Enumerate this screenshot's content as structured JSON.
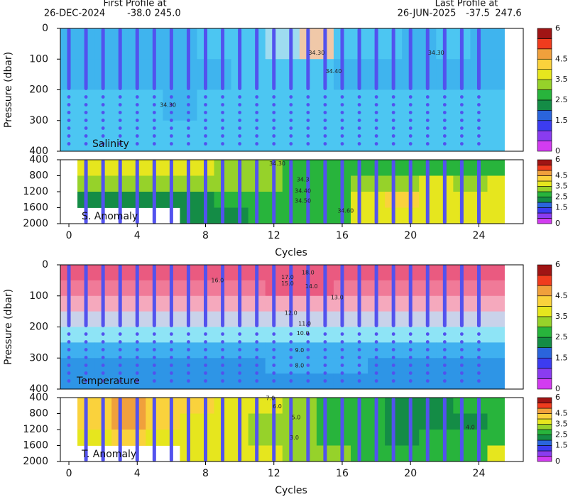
{
  "header": {
    "first": "First Profile at",
    "first_date": "26-DEC-2024",
    "first_lat": "-38.0",
    "first_lon": "245.0",
    "last": "Last Profile at",
    "last_date": "26-JUN-2025",
    "last_lat": "-37.5",
    "last_lon": "247.6"
  },
  "colorbar": {
    "bounds": [
      0,
      0.5,
      1,
      1.5,
      2,
      2.5,
      3,
      3.5,
      4,
      4.5,
      5,
      5.5,
      6
    ],
    "colors": [
      "#d23cf0",
      "#8a3cf0",
      "#3c3cf0",
      "#2a64dc",
      "#148c46",
      "#28b43c",
      "#96d22a",
      "#e6e61e",
      "#fad23c",
      "#f0a03c",
      "#f03c1e",
      "#a01414"
    ],
    "ticks": [
      0,
      1.5,
      2.5,
      3.5,
      4.5,
      6
    ]
  },
  "chart_data": [
    {
      "type": "heatmap",
      "label": "Salinity",
      "ylabel": "Pressure (dbar)",
      "xlim": [
        -0.5,
        26.6
      ],
      "ylim": [
        0,
        400
      ],
      "yticks": [
        0,
        100,
        200,
        300,
        400
      ],
      "col_edges": [
        -0.5,
        1.5,
        3.5,
        5.5,
        7.5,
        9.5,
        11.5,
        13.5,
        15.5,
        17.5,
        19.5,
        21.5,
        23.5,
        25.5
      ],
      "row_edges": [
        0,
        100,
        200,
        300,
        400
      ],
      "values": [
        [
          34.32,
          34.33,
          34.33,
          34.33,
          34.36,
          34.37,
          34.42,
          34.47,
          34.38,
          34.36,
          34.33,
          34.36,
          34.33
        ],
        [
          34.32,
          34.32,
          34.32,
          34.33,
          34.34,
          34.35,
          34.36,
          34.38,
          34.34,
          34.33,
          34.32,
          34.32,
          34.32
        ],
        [
          34.36,
          34.36,
          34.36,
          34.34,
          34.36,
          34.36,
          34.36,
          34.36,
          34.36,
          34.36,
          34.36,
          34.36,
          34.36
        ],
        [
          34.36,
          34.36,
          34.36,
          34.36,
          34.36,
          34.36,
          34.36,
          34.36,
          34.36,
          34.36,
          34.36,
          34.36,
          34.36
        ]
      ],
      "bounds": [
        34.2,
        34.35,
        34.4,
        34.45,
        34.6
      ],
      "colors": [
        "#3fb4ee",
        "#4cc6f2",
        "#9edcf0",
        "#f0c8a8"
      ],
      "profile_cycles": [
        0,
        1,
        2,
        3,
        4,
        5,
        6,
        7,
        8,
        9,
        10,
        11,
        12,
        13,
        14,
        15,
        16,
        17,
        18,
        19,
        20,
        21,
        22,
        23,
        24
      ],
      "contour_labels": [
        {
          "x": 14.5,
          "y": 80,
          "label": "34.30"
        },
        {
          "x": 15.5,
          "y": 140,
          "label": "34.40"
        },
        {
          "x": 21.5,
          "y": 80,
          "label": "34.30"
        },
        {
          "x": 5.8,
          "y": 250,
          "label": "34.30"
        }
      ]
    },
    {
      "type": "heatmap",
      "label": "S. Anomaly",
      "xlabel": "Cycles",
      "xlim": [
        -0.5,
        26.6
      ],
      "xticks": [
        0,
        4,
        8,
        12,
        16,
        20,
        24
      ],
      "ylim": [
        400,
        2000
      ],
      "yticks": [
        400,
        800,
        1200,
        1600,
        2000
      ],
      "col_edges": [
        0.5,
        2.5,
        4.5,
        6.5,
        8.5,
        10.5,
        12.5,
        14.5,
        16.5,
        18.5,
        20.5,
        22.5,
        24.5,
        25.5
      ],
      "row_edges": [
        400,
        800,
        1200,
        1600,
        2000
      ],
      "values": [
        [
          3.8,
          3.8,
          3.8,
          3.6,
          3.3,
          3.2,
          2.8,
          2.8,
          2.6,
          2.8,
          2.6,
          2.6,
          2.6
        ],
        [
          3.0,
          3.2,
          3.2,
          3.0,
          3.0,
          3.2,
          2.8,
          2.8,
          3.2,
          3.4,
          3.6,
          3.4,
          3.6
        ],
        [
          2.4,
          2.4,
          2.4,
          2.4,
          2.6,
          2.8,
          2.6,
          2.8,
          3.6,
          4.2,
          3.8,
          3.6,
          3.6
        ],
        [
          null,
          null,
          null,
          2.4,
          2.4,
          2.6,
          2.6,
          2.8,
          3.6,
          3.8,
          3.6,
          3.6,
          3.6
        ]
      ],
      "bounds": [
        0,
        0.5,
        1,
        1.5,
        2,
        2.5,
        3,
        3.5,
        4,
        4.5,
        5,
        5.5,
        6
      ],
      "colors": [
        "#d23cf0",
        "#8a3cf0",
        "#3c3cf0",
        "#2a64dc",
        "#148c46",
        "#28b43c",
        "#96d22a",
        "#e6e61e",
        "#fad23c",
        "#f0a03c",
        "#f03c1e",
        "#a01414"
      ],
      "profile_cycles": [
        1,
        2,
        3,
        4,
        5,
        6,
        7,
        8,
        9,
        10,
        11,
        12,
        13,
        14,
        15,
        16,
        17,
        18,
        19,
        20,
        21,
        22,
        23,
        24
      ],
      "contour_labels": [
        {
          "x": 12.2,
          "y": 500,
          "label": "34.30"
        },
        {
          "x": 13.7,
          "y": 900,
          "label": "34.3"
        },
        {
          "x": 13.7,
          "y": 1180,
          "label": "34.40"
        },
        {
          "x": 13.7,
          "y": 1430,
          "label": "34.50"
        },
        {
          "x": 16.2,
          "y": 1680,
          "label": "34.60"
        }
      ]
    },
    {
      "type": "heatmap",
      "label": "Temperature",
      "ylabel": "Pressure (dbar)",
      "xlim": [
        -0.5,
        26.6
      ],
      "ylim": [
        0,
        400
      ],
      "yticks": [
        0,
        100,
        200,
        300,
        400
      ],
      "col_edges": [
        -0.5,
        1.5,
        3.5,
        5.5,
        7.5,
        9.5,
        11.5,
        13.5,
        15.5,
        17.5,
        19.5,
        21.5,
        23.5,
        25.5
      ],
      "row_edges": [
        0,
        50,
        100,
        150,
        200,
        250,
        300,
        350,
        400
      ],
      "values": [
        [
          17.2,
          17.4,
          17.4,
          17.3,
          17.4,
          17.6,
          18.2,
          18.3,
          17.6,
          17.4,
          17.2,
          17.2,
          17.2
        ],
        [
          16.4,
          16.6,
          16.6,
          16.4,
          16.5,
          16.6,
          17.0,
          17.2,
          16.8,
          16.6,
          16.4,
          16.4,
          16.4
        ],
        [
          14.5,
          14.8,
          14.8,
          14.6,
          14.6,
          14.8,
          15.2,
          15.5,
          15.0,
          14.8,
          14.6,
          14.8,
          14.6
        ],
        [
          12.6,
          12.8,
          12.8,
          12.6,
          12.6,
          12.8,
          13.0,
          13.2,
          12.8,
          12.6,
          12.4,
          12.6,
          12.4
        ],
        [
          10.6,
          10.8,
          10.8,
          10.6,
          10.8,
          10.8,
          11.0,
          11.0,
          10.8,
          10.6,
          10.4,
          10.6,
          10.4
        ],
        [
          8.8,
          9.0,
          9.0,
          8.8,
          9.0,
          9.0,
          9.2,
          9.4,
          9.2,
          9.0,
          8.8,
          9.0,
          8.8
        ],
        [
          7.6,
          7.6,
          7.6,
          7.8,
          7.8,
          7.8,
          8.0,
          8.2,
          8.0,
          7.8,
          7.6,
          7.8,
          7.6
        ],
        [
          7.2,
          7.2,
          7.2,
          7.2,
          7.2,
          7.2,
          7.4,
          7.4,
          7.2,
          7.2,
          7.2,
          7.2,
          7.2
        ]
      ],
      "bounds": [
        6,
        8,
        10,
        12,
        14,
        16,
        17,
        19
      ],
      "colors": [
        "#2e95e6",
        "#3fb0f0",
        "#8ee4f6",
        "#c9d2ea",
        "#f5a9bd",
        "#f07a98",
        "#ea5a80"
      ],
      "profile_cycles": [
        0,
        1,
        2,
        3,
        4,
        5,
        6,
        7,
        8,
        9,
        10,
        11,
        12,
        13,
        14,
        15,
        16,
        17,
        18,
        19,
        20,
        21,
        22,
        23,
        24
      ],
      "contour_labels": [
        {
          "x": 14,
          "y": 25,
          "label": "18.0"
        },
        {
          "x": 12.8,
          "y": 40,
          "label": "17.0"
        },
        {
          "x": 8.7,
          "y": 50,
          "label": "16.0"
        },
        {
          "x": 12.8,
          "y": 60,
          "label": "15.0"
        },
        {
          "x": 14.2,
          "y": 70,
          "label": "14.0"
        },
        {
          "x": 15.7,
          "y": 105,
          "label": "13.0"
        },
        {
          "x": 13,
          "y": 155,
          "label": "12.0"
        },
        {
          "x": 13.8,
          "y": 190,
          "label": "11.0"
        },
        {
          "x": 13.7,
          "y": 220,
          "label": "10.0"
        },
        {
          "x": 13.5,
          "y": 275,
          "label": "9.0"
        },
        {
          "x": 13.5,
          "y": 325,
          "label": "8.0"
        }
      ]
    },
    {
      "type": "heatmap",
      "label": "T. Anomaly",
      "xlabel": "Cycles",
      "xlim": [
        -0.5,
        26.6
      ],
      "xticks": [
        0,
        4,
        8,
        12,
        16,
        20,
        24
      ],
      "ylim": [
        400,
        2000
      ],
      "yticks": [
        400,
        800,
        1200,
        1600,
        2000
      ],
      "col_edges": [
        0.5,
        2.5,
        4.5,
        6.5,
        8.5,
        10.5,
        12.5,
        14.5,
        16.5,
        18.5,
        20.5,
        22.5,
        24.5,
        25.5
      ],
      "row_edges": [
        400,
        800,
        1200,
        1600,
        2000
      ],
      "values": [
        [
          4.2,
          4.6,
          4.0,
          4.0,
          3.8,
          3.6,
          3.2,
          2.6,
          2.6,
          2.4,
          2.4,
          2.6,
          2.6
        ],
        [
          4.0,
          4.6,
          4.2,
          3.8,
          3.6,
          3.4,
          3.0,
          2.8,
          2.6,
          2.4,
          2.4,
          2.4,
          2.6
        ],
        [
          3.8,
          4.2,
          3.8,
          3.6,
          3.6,
          3.4,
          3.0,
          2.8,
          2.6,
          2.4,
          2.6,
          2.6,
          2.8
        ],
        [
          null,
          null,
          null,
          3.6,
          3.6,
          3.6,
          3.2,
          3.0,
          2.6,
          2.6,
          2.6,
          2.6,
          3.6
        ]
      ],
      "bounds": [
        0,
        0.5,
        1,
        1.5,
        2,
        2.5,
        3,
        3.5,
        4,
        4.5,
        5,
        5.5,
        6
      ],
      "colors": [
        "#d23cf0",
        "#8a3cf0",
        "#3c3cf0",
        "#2a64dc",
        "#148c46",
        "#28b43c",
        "#96d22a",
        "#e6e61e",
        "#fad23c",
        "#f0a03c",
        "#f03c1e",
        "#a01414"
      ],
      "profile_cycles": [
        1,
        2,
        3,
        4,
        5,
        6,
        7,
        8,
        9,
        10,
        11,
        12,
        13,
        14,
        15,
        16,
        17,
        18,
        19,
        20,
        21,
        22,
        23,
        24
      ],
      "contour_labels": [
        {
          "x": 11.8,
          "y": 420,
          "label": "7.0"
        },
        {
          "x": 12.2,
          "y": 620,
          "label": "6.0"
        },
        {
          "x": 13.3,
          "y": 900,
          "label": "5.0"
        },
        {
          "x": 23.5,
          "y": 1150,
          "label": "4.0"
        },
        {
          "x": 13.2,
          "y": 1400,
          "label": "3.0"
        }
      ]
    }
  ]
}
